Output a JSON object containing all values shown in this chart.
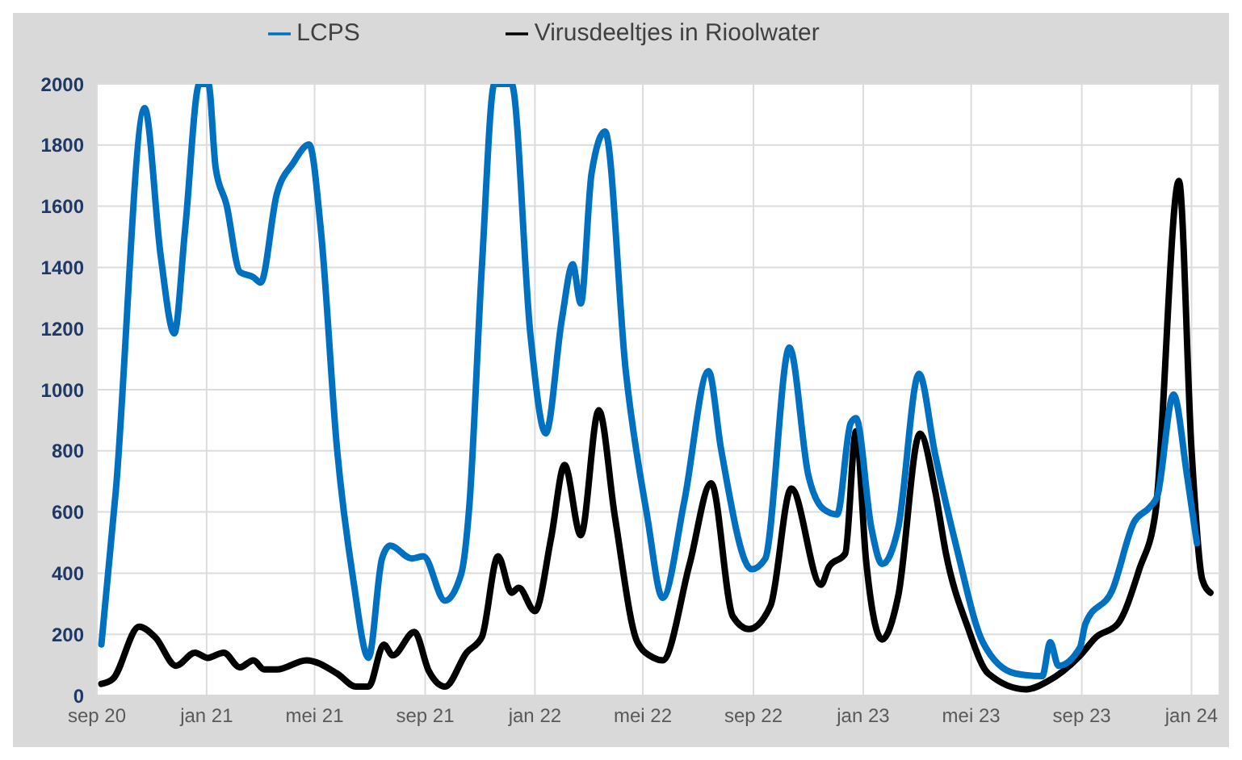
{
  "chart_data": {
    "type": "line",
    "xlim": [
      "2020-09-01",
      "2024-02-01"
    ],
    "xticks": [
      {
        "value": "2020-09-01",
        "label": "sep 20"
      },
      {
        "value": "2021-01-01",
        "label": "jan 21"
      },
      {
        "value": "2021-05-01",
        "label": "mei 21"
      },
      {
        "value": "2021-09-01",
        "label": "sep 21"
      },
      {
        "value": "2022-01-01",
        "label": "jan 22"
      },
      {
        "value": "2022-05-01",
        "label": "mei 22"
      },
      {
        "value": "2022-09-01",
        "label": "sep 22"
      },
      {
        "value": "2023-01-01",
        "label": "jan 23"
      },
      {
        "value": "2023-05-01",
        "label": "mei 23"
      },
      {
        "value": "2023-09-01",
        "label": "sep 23"
      },
      {
        "value": "2024-01-01",
        "label": "jan 24"
      }
    ],
    "ylim": [
      0,
      2000
    ],
    "yticks": [
      0,
      200,
      400,
      600,
      800,
      1000,
      1200,
      1400,
      1600,
      1800,
      2000
    ],
    "grid": true,
    "legend": "top",
    "marker": "none",
    "line_style": "solid",
    "series": [
      {
        "name": "Virusdeeltjes in Rioolwater",
        "color": "#000000",
        "x": [
          "2020-09-06",
          "2020-09-19",
          "2020-10-18",
          "2020-11-05",
          "2020-11-28",
          "2020-12-19",
          "2021-01-02",
          "2021-01-20",
          "2021-02-07",
          "2021-02-22",
          "2021-03-06",
          "2021-03-20",
          "2021-04-22",
          "2021-05-26",
          "2021-06-16",
          "2021-06-30",
          "2021-07-17",
          "2021-07-27",
          "2021-08-20",
          "2021-09-05",
          "2021-09-23",
          "2021-10-17",
          "2021-11-03",
          "2021-11-21",
          "2021-12-06",
          "2021-12-14",
          "2022-01-01",
          "2022-01-19",
          "2022-02-03",
          "2022-02-21",
          "2022-03-13",
          "2022-03-31",
          "2022-04-25",
          "2022-05-13",
          "2022-05-23",
          "2022-06-22",
          "2022-07-16",
          "2022-08-09",
          "2022-08-27",
          "2022-09-20",
          "2022-10-13",
          "2022-11-15",
          "2022-11-24",
          "2022-12-12",
          "2022-12-24",
          "2023-01-04",
          "2023-01-22",
          "2023-02-09",
          "2023-03-05",
          "2023-03-22",
          "2023-04-03",
          "2023-04-27",
          "2023-05-20",
          "2023-07-01",
          "2023-07-25",
          "2023-08-30",
          "2023-09-17",
          "2023-10-11",
          "2023-11-04",
          "2023-11-22",
          "2023-12-18",
          "2024-01-01",
          "2024-01-13",
          "2024-01-22"
        ],
        "values": [
          38,
          55,
          225,
          190,
          97,
          140,
          123,
          140,
          92,
          115,
          85,
          85,
          115,
          72,
          29,
          29,
          166,
          131,
          208,
          80,
          29,
          140,
          191,
          455,
          336,
          352,
          276,
          515,
          754,
          524,
          933,
          583,
          174,
          123,
          115,
          430,
          694,
          259,
          217,
          294,
          677,
          362,
          421,
          464,
          864,
          447,
          183,
          327,
          856,
          669,
          464,
          225,
          72,
          20,
          46,
          130,
          191,
          234,
          413,
          600,
          1683,
          805,
          379,
          336
        ]
      },
      {
        "name": "LCPS",
        "color": "#0070c0",
        "x": [
          "2020-09-06",
          "2020-09-22",
          "2020-10-24",
          "2020-11-11",
          "2020-11-26",
          "2020-12-08",
          "2020-12-24",
          "2021-01-03",
          "2021-01-11",
          "2021-01-23",
          "2021-02-07",
          "2021-02-22",
          "2021-03-02",
          "2021-03-20",
          "2021-04-07",
          "2021-04-25",
          "2021-05-08",
          "2021-05-26",
          "2021-06-13",
          "2021-06-30",
          "2021-07-15",
          "2021-07-24",
          "2021-08-17",
          "2021-08-30",
          "2021-09-23",
          "2021-10-11",
          "2021-10-20",
          "2021-11-03",
          "2021-11-17",
          "2021-12-06",
          "2021-12-27",
          "2022-01-13",
          "2022-01-31",
          "2022-02-12",
          "2022-02-21",
          "2022-03-05",
          "2022-03-20",
          "2022-04-12",
          "2022-05-06",
          "2022-05-23",
          "2022-06-16",
          "2022-07-13",
          "2022-07-27",
          "2022-08-30",
          "2022-09-14",
          "2022-10-11",
          "2022-11-01",
          "2022-11-18",
          "2022-12-03",
          "2022-12-18",
          "2022-12-24",
          "2023-01-10",
          "2023-01-22",
          "2023-02-09",
          "2023-03-04",
          "2023-03-22",
          "2023-04-15",
          "2023-05-14",
          "2023-06-19",
          "2023-07-19",
          "2023-07-28",
          "2023-08-06",
          "2023-08-30",
          "2023-09-05",
          "2023-10-05",
          "2023-10-29",
          "2023-11-16",
          "2023-11-24",
          "2023-12-12",
          "2023-12-27",
          "2024-01-07"
        ],
        "values": [
          167,
          668,
          1921,
          1436,
          1184,
          1522,
          2000,
          2000,
          1726,
          1606,
          1385,
          1368,
          1350,
          1640,
          1740,
          1802,
          1522,
          806,
          379,
          123,
          448,
          490,
          448,
          455,
          310,
          397,
          617,
          1401,
          2000,
          2000,
          1180,
          857,
          1231,
          1410,
          1282,
          1708,
          1844,
          1061,
          583,
          319,
          634,
          1061,
          805,
          413,
          447,
          1138,
          720,
          609,
          592,
          890,
          907,
          549,
          430,
          549,
          1052,
          788,
          481,
          174,
          72,
          63,
          174,
          97,
          157,
          234,
          345,
          566,
          617,
          652,
          984,
          720,
          498
        ]
      }
    ]
  }
}
